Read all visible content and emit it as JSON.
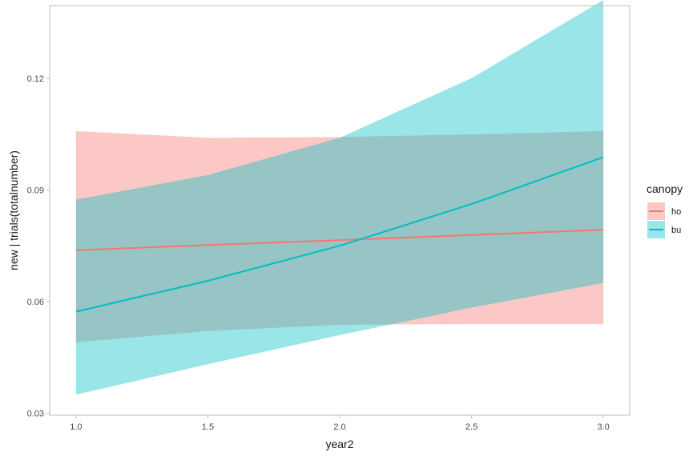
{
  "chart_data": {
    "type": "line",
    "xlabel": "year2",
    "ylabel": "new | trials(totalnumber)",
    "xlim": [
      0.9,
      3.1
    ],
    "ylim": [
      0.0295,
      0.1395
    ],
    "x_ticks": [
      "1.0",
      "1.5",
      "2.0",
      "2.5",
      "3.0"
    ],
    "y_ticks": [
      "0.03",
      "0.06",
      "0.09",
      "0.12"
    ],
    "grid": false,
    "legend": {
      "title": "canopy",
      "placement": "right",
      "entries": [
        "ho",
        "bu"
      ]
    },
    "series": [
      {
        "name": "ho",
        "color": "#f8766d",
        "x": [
          1.0,
          1.5,
          2.0,
          2.5,
          3.0
        ],
        "y": [
          0.0738,
          0.0752,
          0.0765,
          0.0779,
          0.0793
        ],
        "lower": [
          0.0491,
          0.0521,
          0.0538,
          0.054,
          0.054
        ],
        "upper": [
          0.1058,
          0.104,
          0.1042,
          0.1049,
          0.1058
        ]
      },
      {
        "name": "bu",
        "color": "#00bfc4",
        "x": [
          1.0,
          1.5,
          2.0,
          2.5,
          3.0
        ],
        "y": [
          0.0573,
          0.0656,
          0.075,
          0.0862,
          0.0988
        ],
        "lower": [
          0.035,
          0.0432,
          0.051,
          0.0584,
          0.065
        ],
        "upper": [
          0.0874,
          0.094,
          0.104,
          0.12,
          0.141
        ]
      }
    ]
  }
}
